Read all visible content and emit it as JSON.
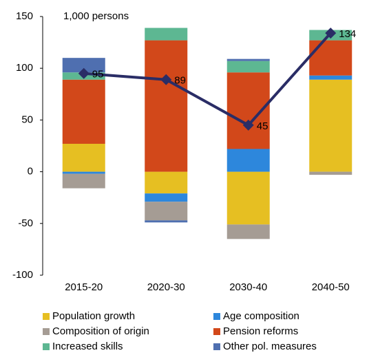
{
  "chart_data": {
    "type": "stacked-bar-line",
    "y_label": "1,000 persons",
    "categories": [
      "2015-20",
      "2020-30",
      "2030-40",
      "2040-50"
    ],
    "series": [
      {
        "name": "Population growth",
        "color": "#e6bf22",
        "values": [
          27,
          -21,
          -51,
          89
        ]
      },
      {
        "name": "Age composition",
        "color": "#2d87dc",
        "values": [
          -2,
          -8,
          22,
          4
        ]
      },
      {
        "name": "Composition of origin",
        "color": "#a59c94",
        "values": [
          -14,
          -18,
          -14,
          -3
        ]
      },
      {
        "name": "Pension reforms",
        "color": "#d2481a",
        "values": [
          62,
          127,
          74,
          34
        ]
      },
      {
        "name": "Increased skills",
        "color": "#5db792",
        "values": [
          7,
          12,
          11,
          10
        ]
      },
      {
        "name": "Other pol. measures",
        "color": "#4f6fb0",
        "values": [
          14,
          -2,
          2,
          0
        ]
      }
    ],
    "line_values": [
      95,
      89,
      45,
      134
    ],
    "line_color": "#2a2d66",
    "ylim": [
      -100,
      150
    ],
    "yticks": [
      -100,
      -50,
      0,
      50,
      100,
      150
    ]
  }
}
